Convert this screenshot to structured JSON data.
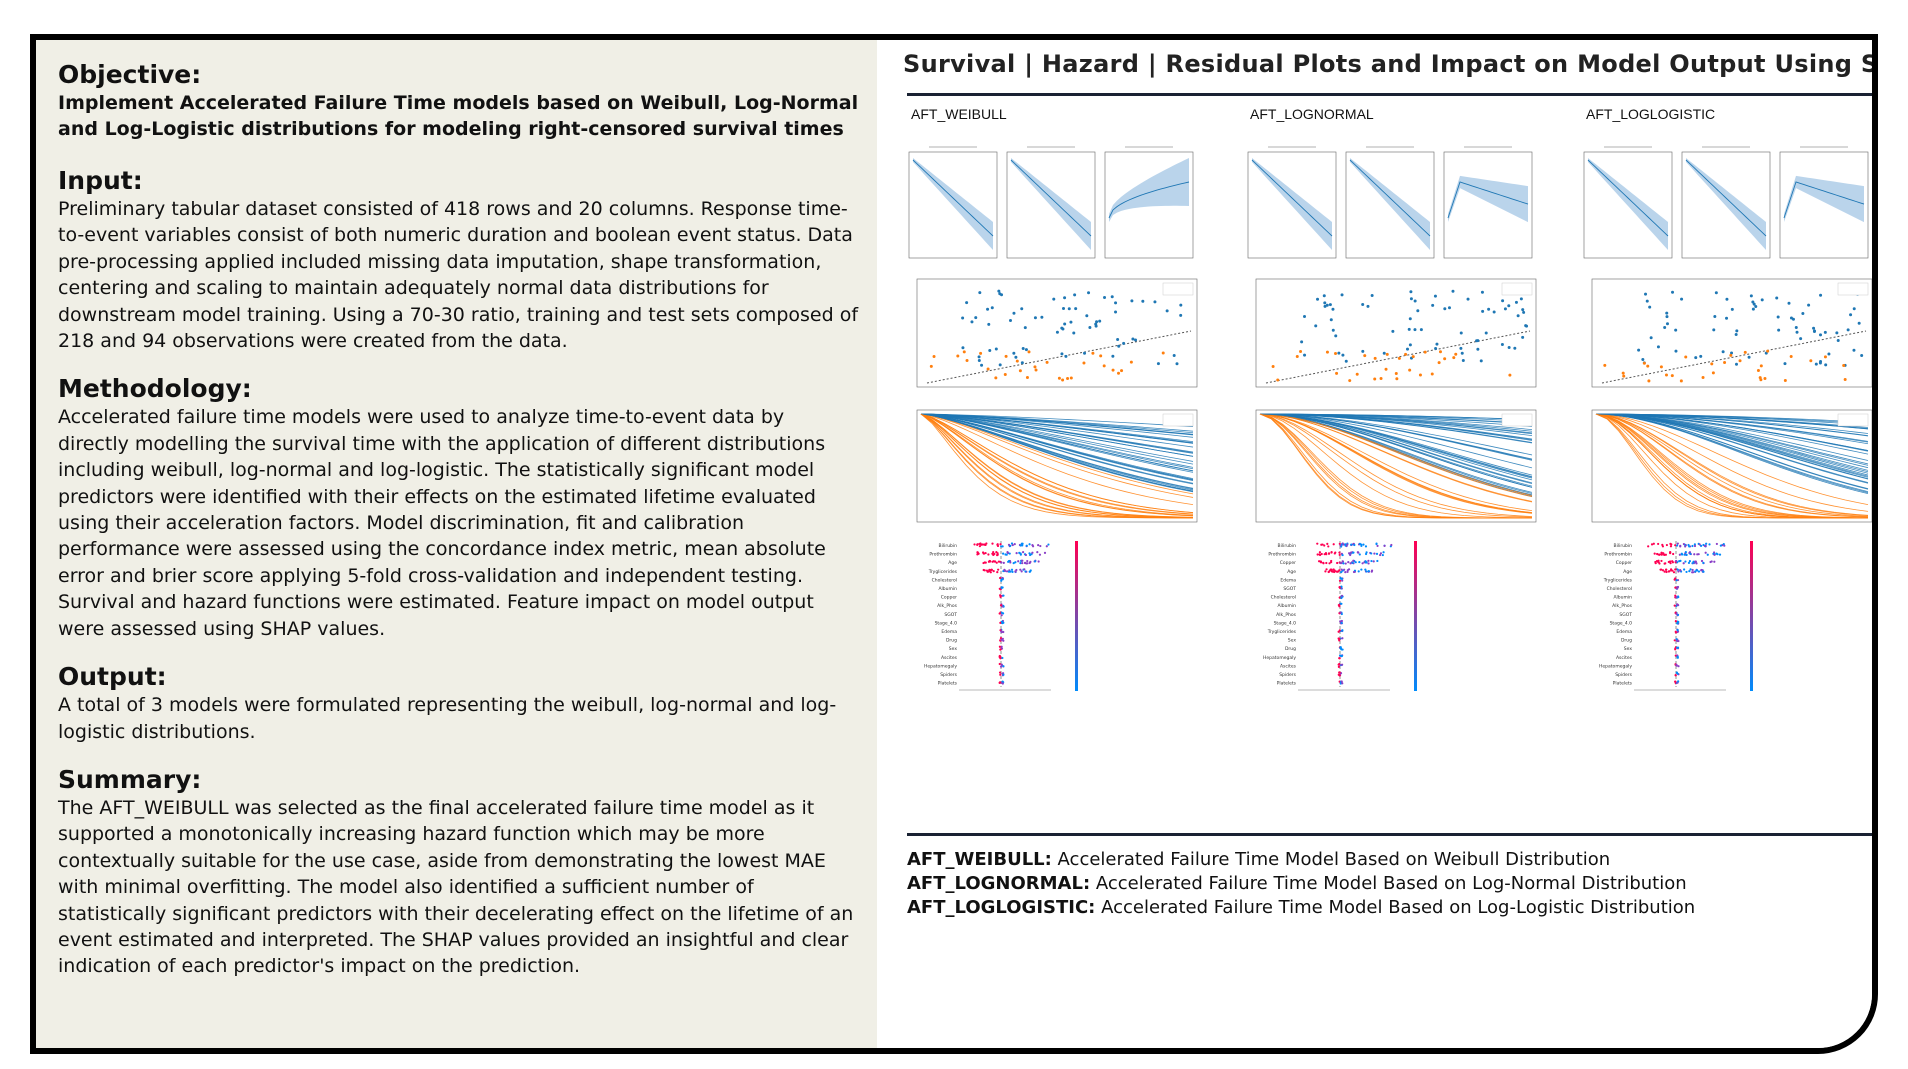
{
  "left": {
    "objective": {
      "title": "Objective:",
      "subtitle": "Implement Accelerated Failure Time models based on Weibull, Log-Normal and Log-Logistic distributions for modeling right-censored survival times"
    },
    "input": {
      "title": "Input:",
      "body": "Preliminary tabular dataset consisted of 418 rows and 20 columns. Response time-to-event variables consist of both numeric duration and boolean event status. Data pre-processing applied included missing data imputation, shape transformation, centering and scaling to maintain adequately normal data distributions for downstream model training. Using a 70-30 ratio, training and test sets composed of 218  and 94 observations were created from the data."
    },
    "methodology": {
      "title": "Methodology:",
      "body": "Accelerated failure time models were used to analyze time-to-event data by directly modelling the survival time with the application of different distributions including weibull, log-normal and log-logistic. The statistically significant model predictors were identified with their effects on the estimated lifetime evaluated using their acceleration factors. Model discrimination, fit and calibration performance were assessed using the concordance index metric, mean absolute error and brier score applying 5-fold cross-validation and independent testing. Survival and hazard functions were estimated. Feature impact on model output were assessed using SHAP values."
    },
    "output": {
      "title": "Output:",
      "body": "A total of 3 models were formulated representing the weibull, log-normal and log-logistic distributions."
    },
    "summary": {
      "title": "Summary:",
      "body": "The AFT_WEIBULL was selected as the final accelerated failure time model as it supported a monotonically increasing hazard function which may be more contextually suitable for the use case, aside from demonstrating the lowest MAE with minimal overfitting. The model also identified a sufficient number of statistically significant predictors with their decelerating effect on the lifetime of an event estimated and interpreted. The SHAP values provided an insightful and clear indication of each predictor's impact on the prediction."
    }
  },
  "right": {
    "title": "Survival | Hazard | Residual Plots and Impact on Model Output Using SHAP Values",
    "models": [
      {
        "label": "AFT_WEIBULL",
        "shap_features": [
          "Bilirubin",
          "Prothrombin",
          "Age",
          "Tryglicerides",
          "Cholesterol",
          "Albumin",
          "Copper",
          "Alk_Phos",
          "SGOT",
          "Stage_4.0",
          "Edema",
          "Drug",
          "Sex",
          "Ascites",
          "Hepatomegaly",
          "Spiders",
          "Platelets"
        ]
      },
      {
        "label": "AFT_LOGNORMAL",
        "shap_features": [
          "Bilirubin",
          "Prothrombin",
          "Copper",
          "Age",
          "Edema",
          "SGOT",
          "Cholesterol",
          "Albumin",
          "Alk_Phos",
          "Stage_4.0",
          "Tryglicerides",
          "Sex",
          "Drug",
          "Hepatomegaly",
          "Ascites",
          "Spiders",
          "Platelets"
        ]
      },
      {
        "label": "AFT_LOGLOGISTIC",
        "shap_features": [
          "Bilirubin",
          "Prothrombin",
          "Copper",
          "Age",
          "Tryglicerides",
          "Cholesterol",
          "Albumin",
          "Alk_Phos",
          "SGOT",
          "Stage_4.0",
          "Edema",
          "Drug",
          "Sex",
          "Ascites",
          "Hepatomegaly",
          "Spiders",
          "Platelets"
        ]
      }
    ],
    "legend": [
      {
        "key": "AFT_WEIBULL:",
        "text": " Accelerated Failure Time Model Based on Weibull Distribution"
      },
      {
        "key": "AFT_LOGNORMAL:",
        "text": " Accelerated Failure Time Model Based on Log-Normal Distribution"
      },
      {
        "key": "AFT_LOGLOGISTIC:",
        "text": " Accelerated Failure Time Model Based on Log-Logistic Distribution"
      }
    ],
    "colors": {
      "blue": "#1f77b4",
      "orange": "#ff7f0e",
      "band": "#a9c9e6",
      "shap_high": "#ff0052",
      "shap_low": "#008bfb"
    }
  }
}
